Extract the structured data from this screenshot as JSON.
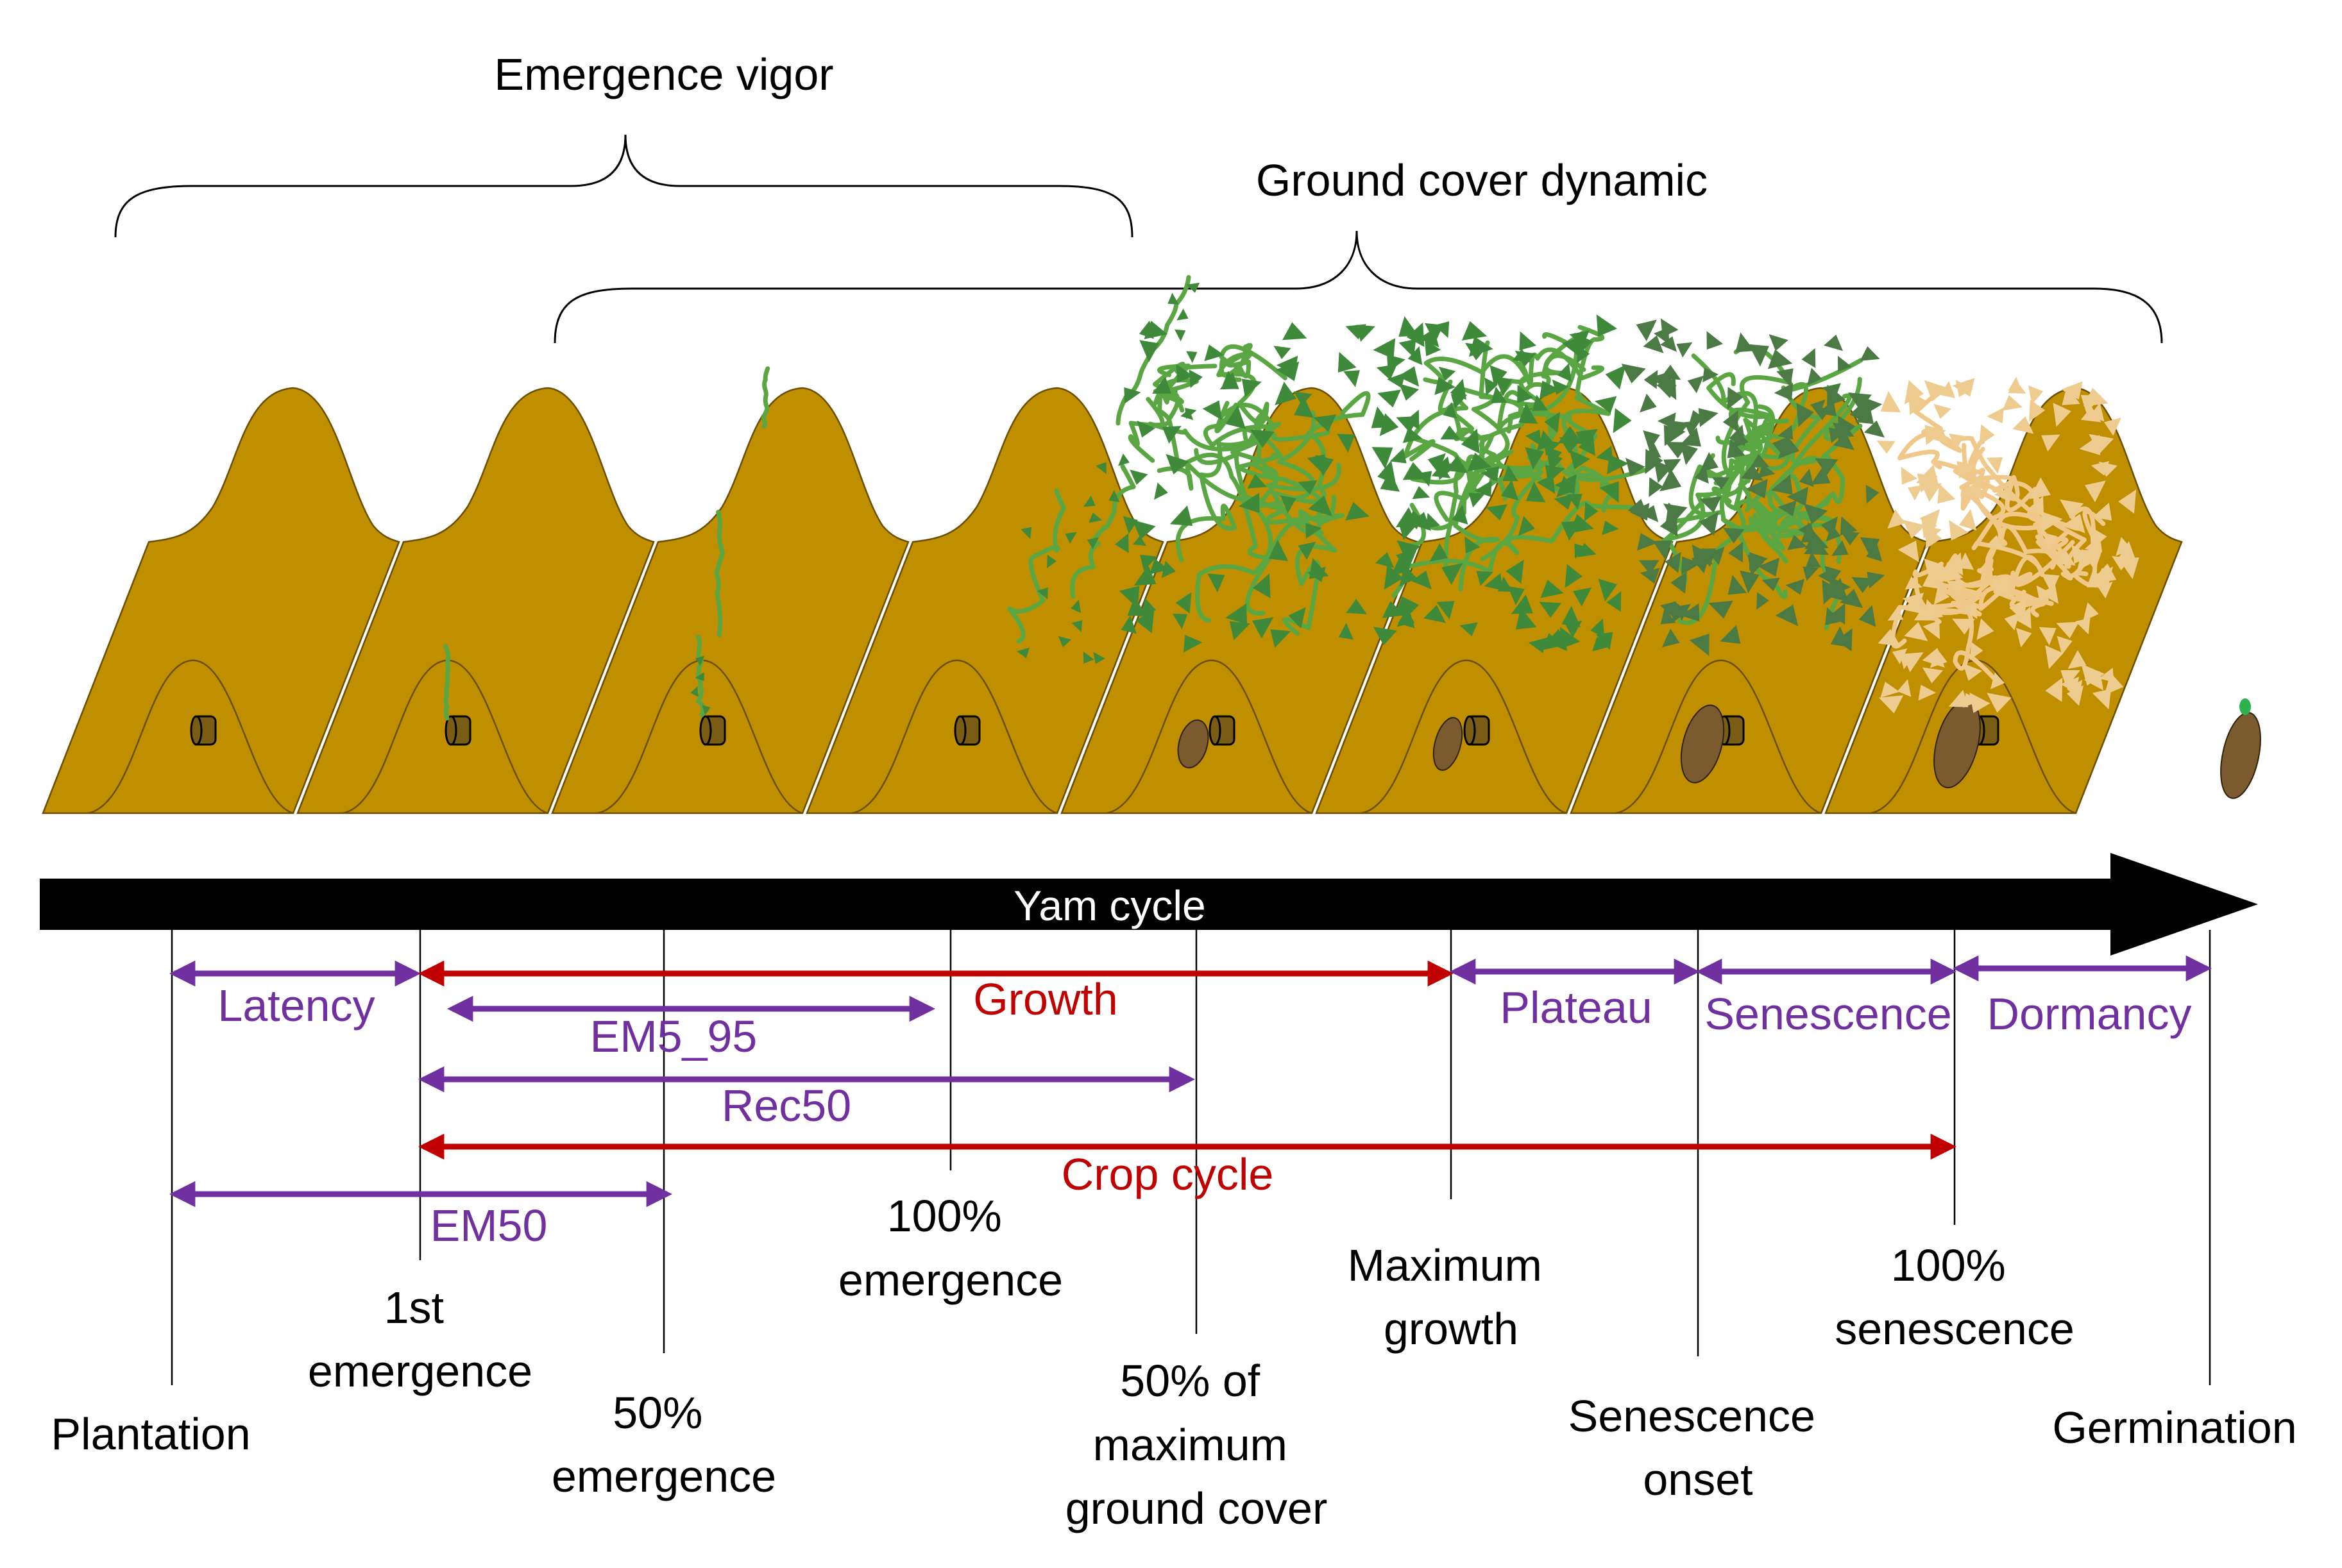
{
  "braces": {
    "emergence_vigor": "Emergence vigor",
    "ground_cover_dynamic": "Ground cover dynamic"
  },
  "timeline": {
    "label": "Yam cycle",
    "color": "#000000"
  },
  "stages": [
    {
      "id": "plantation",
      "lines": [
        "Plantation"
      ]
    },
    {
      "id": "first-emergence",
      "lines": [
        "1st",
        "emergence"
      ]
    },
    {
      "id": "emergence-50",
      "lines": [
        "50%",
        "emergence"
      ]
    },
    {
      "id": "emergence-100",
      "lines": [
        "100%",
        "emergence"
      ]
    },
    {
      "id": "ground-cover-50",
      "lines": [
        "50% of",
        "maximum",
        "ground cover"
      ]
    },
    {
      "id": "maximum-growth",
      "lines": [
        "Maximum",
        "growth"
      ]
    },
    {
      "id": "senescence-onset",
      "lines": [
        "Senescence",
        "onset"
      ]
    },
    {
      "id": "senescence-100",
      "lines": [
        "100%",
        "senescence"
      ]
    },
    {
      "id": "germination",
      "lines": [
        "Germination"
      ]
    }
  ],
  "intervals": [
    {
      "id": "latency",
      "label": "Latency",
      "color": "purple"
    },
    {
      "id": "growth",
      "label": "Growth",
      "color": "red"
    },
    {
      "id": "em5-95",
      "label": "EM5_95",
      "color": "purple"
    },
    {
      "id": "rec50",
      "label": "Rec50",
      "color": "purple"
    },
    {
      "id": "crop-cycle",
      "label": "Crop cycle",
      "color": "red"
    },
    {
      "id": "em50",
      "label": "EM50",
      "color": "purple"
    },
    {
      "id": "plateau",
      "label": "Plateau",
      "color": "purple"
    },
    {
      "id": "senescence",
      "label": "Senescence",
      "color": "purple"
    },
    {
      "id": "dormancy",
      "label": "Dormancy",
      "color": "purple"
    }
  ],
  "colors": {
    "purple": "#7030a0",
    "red": "#c00000",
    "soil": "#bf8f00",
    "vine": "#5aa642",
    "leaf": "#3f8a3a",
    "dry_vegetation": "#eecb8e",
    "tuber": "#7a5a2e"
  }
}
